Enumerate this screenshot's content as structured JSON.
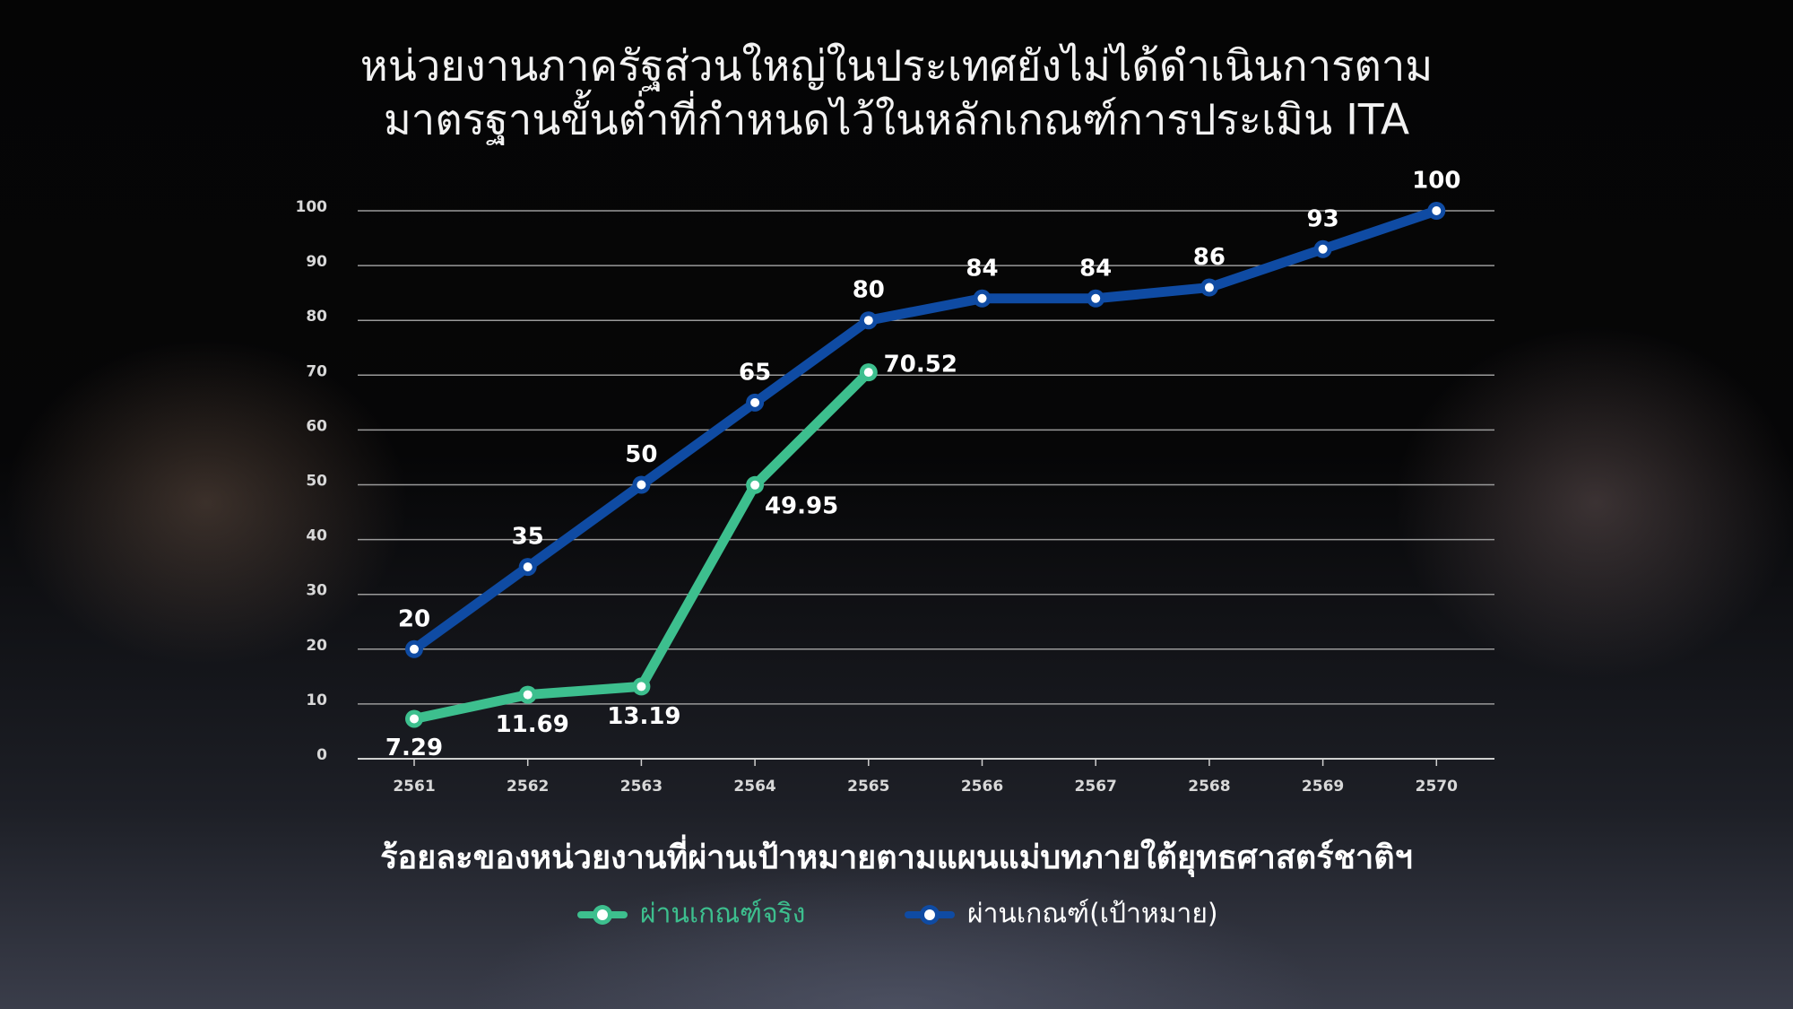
{
  "chart_data": {
    "type": "line",
    "title": [
      "หน่วยงานภาครัฐส่วนใหญ่ในประเทศยังไม่ได้ดำเนินการตาม",
      "มาตรฐานขั้นต่ำที่กำหนดไว้ในหลักเกณฑ์การประเมิน ITA"
    ],
    "subtitle": "ร้อยละของหน่วยงานที่ผ่านเป้าหมายตามแผนแม่บทภายใต้ยุทธศาสตร์ชาติฯ",
    "categories": [
      "2561",
      "2562",
      "2563",
      "2564",
      "2565",
      "2566",
      "2567",
      "2568",
      "2569",
      "2570"
    ],
    "series": [
      {
        "name": "ผ่านเกณฑ์จริง",
        "color": "#3dbf8e",
        "values": [
          7.29,
          11.69,
          13.19,
          49.95,
          70.52,
          null,
          null,
          null,
          null,
          null
        ]
      },
      {
        "name": "ผ่านเกณฑ์(เป้าหมาย)",
        "color": "#0f4ba3",
        "values": [
          20,
          35,
          50,
          65,
          80,
          84,
          84,
          86,
          93,
          100
        ]
      }
    ],
    "ylim": [
      0,
      100
    ],
    "yticks": [
      0,
      10,
      20,
      30,
      40,
      50,
      60,
      70,
      80,
      90,
      100
    ],
    "grid": true
  }
}
